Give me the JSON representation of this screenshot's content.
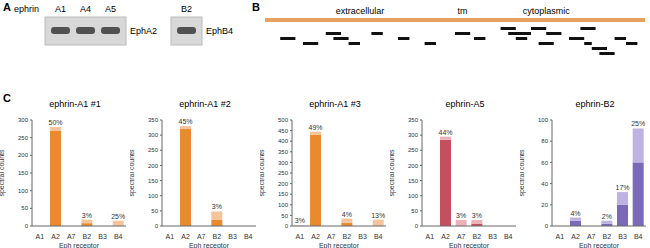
{
  "panel_A": {
    "label": "A",
    "lane_title": "ephrin",
    "gels": [
      {
        "lanes": [
          "A1",
          "A4",
          "A5"
        ],
        "band": "EphA2"
      },
      {
        "lanes": [
          "B2"
        ],
        "band": "EphB4"
      }
    ]
  },
  "panel_B": {
    "label": "B",
    "regions": [
      "extracellular",
      "tm",
      "cytoplasmic"
    ],
    "peptides": [
      [
        4,
        8,
        2
      ],
      [
        10,
        14,
        3
      ],
      [
        16,
        20,
        1
      ],
      [
        18,
        22,
        2
      ],
      [
        22,
        25,
        3
      ],
      [
        28,
        31,
        1
      ],
      [
        35,
        38,
        2
      ],
      [
        42,
        45,
        3
      ],
      [
        50,
        54,
        1
      ],
      [
        55,
        58,
        2
      ],
      [
        62,
        66,
        0
      ],
      [
        64,
        70,
        1
      ],
      [
        66,
        69,
        2
      ],
      [
        70,
        74,
        0
      ],
      [
        72,
        76,
        3
      ],
      [
        74,
        78,
        1
      ],
      [
        80,
        84,
        2
      ],
      [
        83,
        87,
        0
      ],
      [
        84,
        86,
        3
      ],
      [
        86,
        90,
        4
      ],
      [
        88,
        92,
        5
      ],
      [
        92,
        95,
        2
      ],
      [
        95,
        98,
        3
      ]
    ]
  },
  "panel_C": {
    "label": "C"
  },
  "chart_data": [
    {
      "type": "bar",
      "stacked": true,
      "title": "ephrin-A1 #1",
      "x_label": "Eph receptor",
      "y_label": "spectral counts",
      "categories": [
        "A1",
        "A2",
        "A7",
        "B2",
        "B3",
        "B4"
      ],
      "series": [
        {
          "color": "#e98a2e",
          "values": [
            0,
            270,
            0,
            8,
            0,
            0
          ]
        },
        {
          "color": "#f6c49b",
          "values": [
            0,
            10,
            0,
            10,
            0,
            15
          ]
        }
      ],
      "ylim": [
        0,
        300
      ],
      "yticks": [
        0,
        50,
        100,
        150,
        200,
        250,
        300
      ],
      "annotations": [
        {
          "category": "A2",
          "text": "50%"
        },
        {
          "category": "B2",
          "text": "3%"
        },
        {
          "category": "B4",
          "text": "25%"
        }
      ]
    },
    {
      "type": "bar",
      "stacked": true,
      "title": "ephrin-A1 #2",
      "x_label": "Eph receptor",
      "y_label": "spectral counts",
      "categories": [
        "A1",
        "A2",
        "A7",
        "B2",
        "B3",
        "B4"
      ],
      "series": [
        {
          "color": "#e98a2e",
          "values": [
            0,
            320,
            0,
            20,
            0,
            0
          ]
        },
        {
          "color": "#f6c49b",
          "values": [
            0,
            10,
            0,
            28,
            0,
            0
          ]
        }
      ],
      "ylim": [
        0,
        350
      ],
      "yticks": [
        0,
        50,
        100,
        150,
        200,
        250,
        300,
        350
      ],
      "annotations": [
        {
          "category": "A2",
          "text": "45%"
        },
        {
          "category": "B2",
          "text": "3%"
        }
      ]
    },
    {
      "type": "bar",
      "stacked": true,
      "title": "ephrin-A1 #3",
      "x_label": "Eph receptor",
      "y_label": "spectral counts",
      "categories": [
        "A1",
        "A2",
        "A7",
        "B2",
        "B3",
        "B4"
      ],
      "series": [
        {
          "color": "#e98a2e",
          "values": [
            0,
            430,
            0,
            15,
            0,
            0
          ]
        },
        {
          "color": "#f6c49b",
          "values": [
            3,
            15,
            0,
            20,
            0,
            30
          ]
        }
      ],
      "ylim": [
        0,
        500
      ],
      "yticks": [
        0,
        50,
        100,
        150,
        200,
        250,
        300,
        350,
        400,
        450,
        500
      ],
      "annotations": [
        {
          "category": "A1",
          "text": "3%"
        },
        {
          "category": "A2",
          "text": "49%"
        },
        {
          "category": "B2",
          "text": "4%"
        },
        {
          "category": "B4",
          "text": "13%"
        }
      ]
    },
    {
      "type": "bar",
      "stacked": true,
      "title": "ephrin-A5",
      "x_label": "Eph receptor",
      "y_label": "spectral counts",
      "categories": [
        "A1",
        "A2",
        "A7",
        "B2",
        "B3",
        "B4"
      ],
      "series": [
        {
          "color": "#c2505e",
          "values": [
            0,
            285,
            0,
            8,
            0,
            0
          ]
        },
        {
          "color": "#eab1b8",
          "values": [
            0,
            10,
            20,
            12,
            0,
            0
          ]
        }
      ],
      "ylim": [
        0,
        350
      ],
      "yticks": [
        0,
        50,
        100,
        150,
        200,
        250,
        300,
        350
      ],
      "annotations": [
        {
          "category": "A2",
          "text": "44%"
        },
        {
          "category": "A7",
          "text": "3%"
        },
        {
          "category": "B2",
          "text": "3%"
        }
      ]
    },
    {
      "type": "bar",
      "stacked": true,
      "title": "ephrin-B2",
      "x_label": "Eph receptor",
      "y_label": "spectral counts",
      "categories": [
        "A1",
        "A2",
        "A7",
        "B2",
        "B3",
        "B4"
      ],
      "series": [
        {
          "color": "#7b68b8",
          "values": [
            0,
            5,
            0,
            2,
            20,
            60
          ]
        },
        {
          "color": "#bdb2e2",
          "values": [
            0,
            3,
            0,
            3,
            12,
            32
          ]
        }
      ],
      "ylim": [
        0,
        100
      ],
      "yticks": [
        0,
        20,
        40,
        60,
        80,
        100
      ],
      "annotations": [
        {
          "category": "A2",
          "text": "4%"
        },
        {
          "category": "B2",
          "text": "2%"
        },
        {
          "category": "B3",
          "text": "17%"
        },
        {
          "category": "B4",
          "text": "25%"
        }
      ]
    }
  ]
}
